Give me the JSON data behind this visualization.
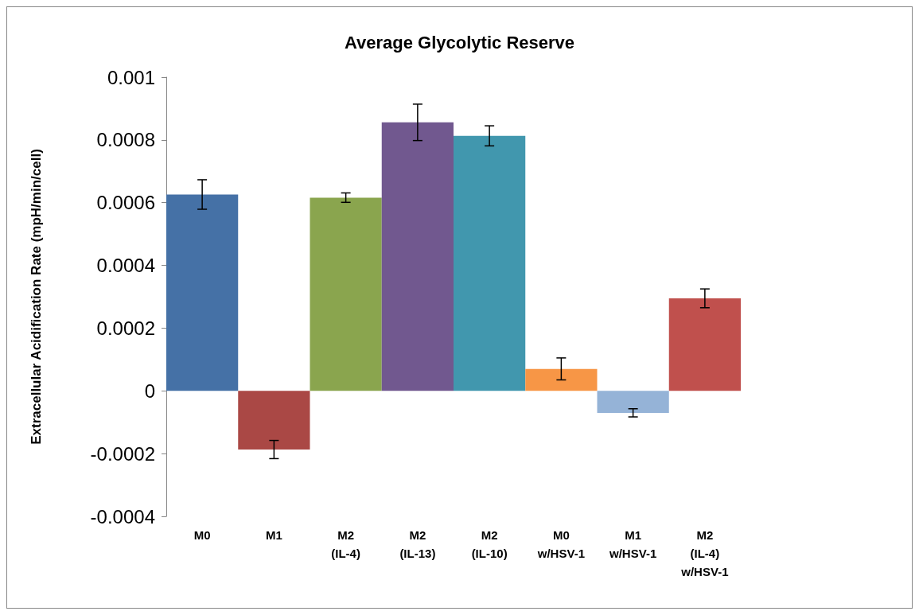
{
  "chart_data": {
    "type": "bar",
    "title": "Average Glycolytic Reserve",
    "ylabel": "Extracellular Acidification Rate (mpH/min/cell)",
    "categories": [
      "M0",
      "M1",
      "M2\n(IL-4)",
      "M2\n(IL-13)",
      "M2\n(IL-10)",
      "M0\nw/HSV-1",
      "M1\nw/HSV-1",
      "M2\n(IL-4)\nw/HSV-1"
    ],
    "values": [
      0.000626,
      -0.000187,
      0.000616,
      0.000856,
      0.000813,
      7e-05,
      -7e-05,
      0.000295
    ],
    "errors": [
      4.7e-05,
      2.9e-05,
      1.5e-05,
      5.8e-05,
      3.2e-05,
      3.5e-05,
      1.3e-05,
      3e-05
    ],
    "colors": [
      "#4571a6",
      "#aa4845",
      "#8aa54e",
      "#71588f",
      "#4197ae",
      "#f79646",
      "#95b3d7",
      "#c0504d"
    ],
    "ylim": [
      -0.0004,
      0.001
    ],
    "yticks": [
      -0.0004,
      -0.0002,
      0,
      0.0002,
      0.0004,
      0.0006,
      0.0008,
      0.001
    ],
    "grid": false
  }
}
